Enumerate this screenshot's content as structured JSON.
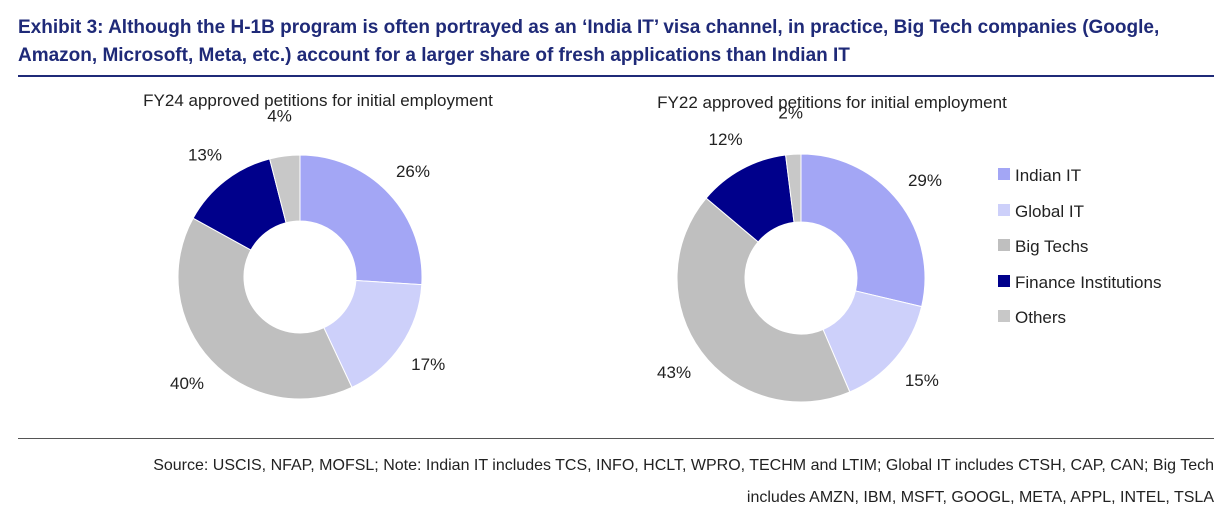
{
  "header": {
    "title": "Exhibit 3: Although the H-1B program is often portrayed as an ‘India IT’ visa channel, in practice, Big Tech companies (Google, Amazon, Microsoft, Meta, etc.) account for a larger share of fresh applications than Indian IT"
  },
  "footer": {
    "source_line1": "Source: USCIS, NFAP, MOFSL; Note: Indian IT includes TCS, INFO, HCLT, WPRO, TECHM and LTIM; Global IT includes CTSH, CAP, CAN; Big Tech",
    "source_line2": "includes AMZN, IBM, MSFT, GOOGL, META, APPL, INTEL, TSLA"
  },
  "legend": {
    "placement": "right",
    "items": [
      {
        "label": "Indian IT",
        "color": "#a3a6f5"
      },
      {
        "label": "Global IT",
        "color": "#cdd0fa"
      },
      {
        "label": "Big Techs",
        "color": "#bfbfbf"
      },
      {
        "label": "Finance Institutions",
        "color": "#00008b"
      },
      {
        "label": "Others",
        "color": "#c8c8c8"
      }
    ]
  },
  "chart_data": [
    {
      "type": "pie",
      "donut": true,
      "title": "FY24 approved petitions for initial employment",
      "categories": [
        "Indian IT",
        "Global IT",
        "Big Techs",
        "Finance Institutions",
        "Others"
      ],
      "values": [
        26,
        17,
        40,
        13,
        4
      ],
      "labels": [
        "26%",
        "17%",
        "40%",
        "13%",
        "4%"
      ],
      "colors": [
        "#a3a6f5",
        "#cdd0fa",
        "#bfbfbf",
        "#00008b",
        "#c8c8c8"
      ]
    },
    {
      "type": "pie",
      "donut": true,
      "title": "FY22 approved petitions for initial employment",
      "categories": [
        "Indian IT",
        "Global IT",
        "Big Techs",
        "Finance Institutions",
        "Others"
      ],
      "values": [
        29,
        15,
        43,
        12,
        2
      ],
      "labels": [
        "29%",
        "15%",
        "43%",
        "12%",
        "2%"
      ],
      "colors": [
        "#a3a6f5",
        "#cdd0fa",
        "#bfbfbf",
        "#00008b",
        "#c8c8c8"
      ]
    }
  ]
}
